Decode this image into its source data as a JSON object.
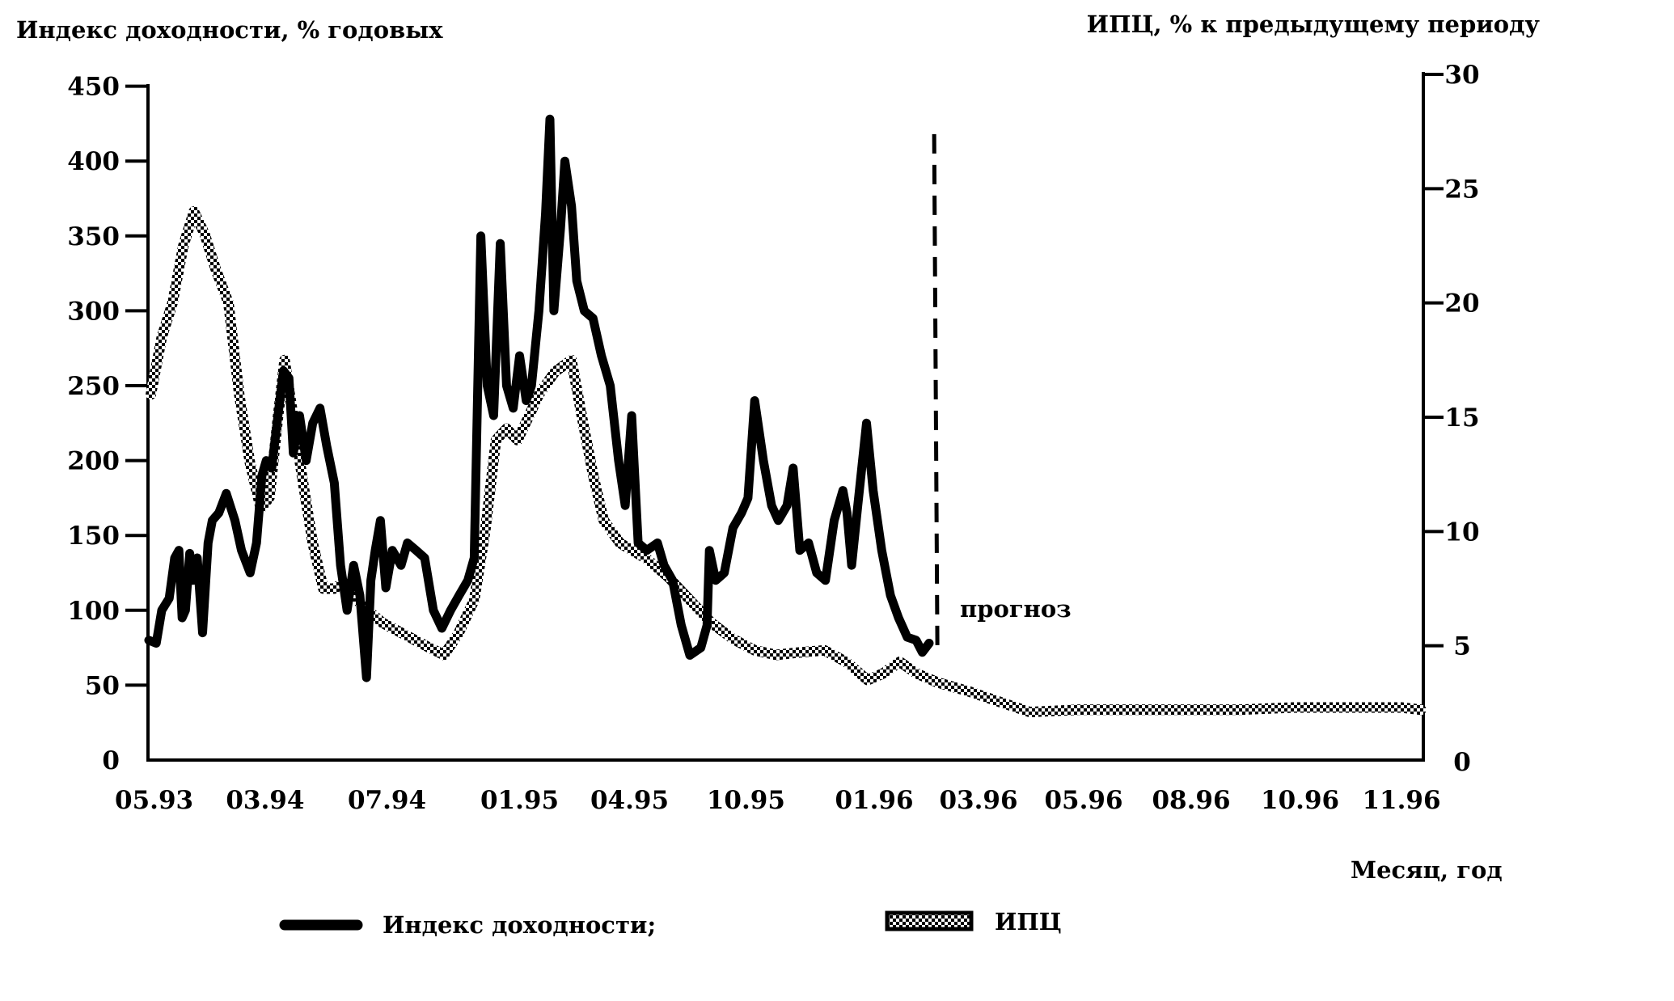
{
  "chart_data": {
    "type": "line",
    "title": "",
    "grid": false,
    "colors": {
      "index_line": "#000000",
      "cpi_pattern_dot": "#000000",
      "cpi_pattern_bg": "#ffffff"
    },
    "y_left": {
      "label": "Индекс доходности, % годовых",
      "range": [
        0,
        450
      ],
      "ticks": [
        0,
        50,
        100,
        150,
        200,
        250,
        300,
        350,
        400,
        450
      ]
    },
    "y_right": {
      "label": "ИПЦ, % к предыдущему периоду",
      "range": [
        0,
        30
      ],
      "ticks": [
        0,
        5,
        10,
        15,
        20,
        25,
        30
      ]
    },
    "x": {
      "label": "Месяц, год",
      "scale": "non-uniform (piecewise between labelled months)",
      "ticks": [
        "05.93",
        "03.94",
        "07.94",
        "01.95",
        "04.95",
        "10.95",
        "01.96",
        "03.96",
        "05.96",
        "08.96",
        "10.96",
        "11.96"
      ],
      "tick_values": [
        1993.333,
        1994.167,
        1994.5,
        1995.0,
        1995.25,
        1995.75,
        1996.0,
        1996.167,
        1996.333,
        1996.583,
        1996.75,
        1996.833
      ]
    },
    "series": [
      {
        "name": "Индекс доходности",
        "axis": "left",
        "style": "solid-thick-black",
        "points": [
          [
            1993.293,
            80
          ],
          [
            1993.349,
            78
          ],
          [
            1993.39,
            100
          ],
          [
            1993.446,
            108
          ],
          [
            1993.487,
            135
          ],
          [
            1993.519,
            140
          ],
          [
            1993.543,
            95
          ],
          [
            1993.568,
            100
          ],
          [
            1993.6,
            138
          ],
          [
            1993.624,
            120
          ],
          [
            1993.657,
            135
          ],
          [
            1993.697,
            85
          ],
          [
            1993.738,
            145
          ],
          [
            1993.77,
            160
          ],
          [
            1993.819,
            165
          ],
          [
            1993.875,
            178
          ],
          [
            1993.94,
            160
          ],
          [
            1993.989,
            140
          ],
          [
            1994.054,
            125
          ],
          [
            1994.102,
            145
          ],
          [
            1994.143,
            190
          ],
          [
            1994.17,
            200
          ],
          [
            1994.185,
            195
          ],
          [
            1994.202,
            230
          ],
          [
            1994.217,
            260
          ],
          [
            1994.232,
            255
          ],
          [
            1994.244,
            205
          ],
          [
            1994.261,
            230
          ],
          [
            1994.279,
            200
          ],
          [
            1994.297,
            225
          ],
          [
            1994.317,
            235
          ],
          [
            1994.335,
            210
          ],
          [
            1994.356,
            185
          ],
          [
            1994.373,
            130
          ],
          [
            1994.391,
            100
          ],
          [
            1994.409,
            130
          ],
          [
            1994.426,
            110
          ],
          [
            1994.444,
            55
          ],
          [
            1994.456,
            120
          ],
          [
            1994.468,
            140
          ],
          [
            1994.482,
            160
          ],
          [
            1994.497,
            115
          ],
          [
            1994.52,
            140
          ],
          [
            1994.553,
            130
          ],
          [
            1994.577,
            145
          ],
          [
            1994.61,
            140
          ],
          [
            1994.642,
            135
          ],
          [
            1994.675,
            100
          ],
          [
            1994.707,
            88
          ],
          [
            1994.74,
            100
          ],
          [
            1994.772,
            110
          ],
          [
            1994.805,
            120
          ],
          [
            1994.829,
            135
          ],
          [
            1994.854,
            350
          ],
          [
            1994.878,
            250
          ],
          [
            1994.902,
            230
          ],
          [
            1994.927,
            345
          ],
          [
            1994.951,
            250
          ],
          [
            1994.976,
            235
          ],
          [
            1995.0,
            270
          ],
          [
            1995.015,
            240
          ],
          [
            1995.027,
            250
          ],
          [
            1995.044,
            300
          ],
          [
            1995.059,
            365
          ],
          [
            1995.069,
            428
          ],
          [
            1995.078,
            300
          ],
          [
            1995.093,
            355
          ],
          [
            1995.103,
            400
          ],
          [
            1995.118,
            370
          ],
          [
            1995.13,
            320
          ],
          [
            1995.147,
            300
          ],
          [
            1995.167,
            295
          ],
          [
            1995.186,
            270
          ],
          [
            1995.206,
            250
          ],
          [
            1995.225,
            200
          ],
          [
            1995.24,
            170
          ],
          [
            1995.259,
            230
          ],
          [
            1995.287,
            145
          ],
          [
            1995.324,
            140
          ],
          [
            1995.37,
            145
          ],
          [
            1995.398,
            130
          ],
          [
            1995.435,
            120
          ],
          [
            1995.472,
            90
          ],
          [
            1995.509,
            70
          ],
          [
            1995.556,
            75
          ],
          [
            1995.583,
            90
          ],
          [
            1995.593,
            140
          ],
          [
            1995.62,
            120
          ],
          [
            1995.657,
            125
          ],
          [
            1995.694,
            155
          ],
          [
            1995.731,
            165
          ],
          [
            1995.754,
            175
          ],
          [
            1995.767,
            240
          ],
          [
            1995.784,
            200
          ],
          [
            1995.8,
            170
          ],
          [
            1995.813,
            160
          ],
          [
            1995.83,
            170
          ],
          [
            1995.842,
            195
          ],
          [
            1995.855,
            140
          ],
          [
            1995.872,
            145
          ],
          [
            1995.888,
            125
          ],
          [
            1995.905,
            120
          ],
          [
            1995.922,
            160
          ],
          [
            1995.939,
            180
          ],
          [
            1995.947,
            165
          ],
          [
            1995.956,
            130
          ],
          [
            1995.968,
            170
          ],
          [
            1995.985,
            225
          ],
          [
            1995.998,
            180
          ],
          [
            1996.012,
            140
          ],
          [
            1996.026,
            110
          ],
          [
            1996.039,
            95
          ],
          [
            1996.053,
            82
          ],
          [
            1996.067,
            80
          ],
          [
            1996.077,
            72
          ],
          [
            1996.088,
            78
          ]
        ]
      },
      {
        "name": "ИПЦ",
        "axis": "right",
        "style": "checkered-band",
        "points": [
          [
            1993.309,
            16
          ],
          [
            1993.39,
            18.5
          ],
          [
            1993.471,
            20
          ],
          [
            1993.552,
            22.5
          ],
          [
            1993.632,
            24
          ],
          [
            1993.713,
            23
          ],
          [
            1993.794,
            21.5
          ],
          [
            1993.891,
            20
          ],
          [
            1993.972,
            16
          ],
          [
            1994.053,
            13
          ],
          [
            1994.134,
            11
          ],
          [
            1994.179,
            11.5
          ],
          [
            1994.202,
            15
          ],
          [
            1994.22,
            17.5
          ],
          [
            1994.244,
            15
          ],
          [
            1994.267,
            12.5
          ],
          [
            1994.297,
            9.5
          ],
          [
            1994.326,
            7.5
          ],
          [
            1994.356,
            7.5
          ],
          [
            1994.385,
            7.8
          ],
          [
            1994.429,
            6.8
          ],
          [
            1994.488,
            6
          ],
          [
            1994.565,
            5.5
          ],
          [
            1994.646,
            5
          ],
          [
            1994.715,
            4.6
          ],
          [
            1994.768,
            5.5
          ],
          [
            1994.829,
            7
          ],
          [
            1994.87,
            10
          ],
          [
            1994.911,
            14
          ],
          [
            1994.951,
            14.5
          ],
          [
            1994.992,
            14
          ],
          [
            1995.02,
            15
          ],
          [
            1995.044,
            16
          ],
          [
            1995.081,
            17
          ],
          [
            1995.118,
            17.5
          ],
          [
            1995.142,
            15
          ],
          [
            1995.167,
            12.5
          ],
          [
            1995.191,
            10.5
          ],
          [
            1995.228,
            9.5
          ],
          [
            1995.324,
            8.8
          ],
          [
            1995.417,
            8
          ],
          [
            1995.509,
            7
          ],
          [
            1995.602,
            6
          ],
          [
            1995.694,
            5.3
          ],
          [
            1995.767,
            4.8
          ],
          [
            1995.809,
            4.6
          ],
          [
            1995.851,
            4.7
          ],
          [
            1995.903,
            4.8
          ],
          [
            1995.945,
            4.3
          ],
          [
            1995.987,
            3.5
          ],
          [
            1996.015,
            3.8
          ],
          [
            1996.041,
            4.3
          ],
          [
            1996.067,
            3.8
          ],
          [
            1996.101,
            3.4
          ],
          [
            1996.152,
            3
          ],
          [
            1996.205,
            2.5
          ],
          [
            1996.248,
            2.1
          ],
          [
            1996.325,
            2.2
          ],
          [
            1996.446,
            2.2
          ],
          [
            1996.571,
            2.2
          ],
          [
            1996.657,
            2.2
          ],
          [
            1996.74,
            2.3
          ],
          [
            1996.789,
            2.3
          ],
          [
            1996.833,
            2.3
          ],
          [
            1996.849,
            2.2
          ]
        ]
      }
    ],
    "annotations": [
      {
        "type": "vertical-dashed-line",
        "x": 1996.096,
        "y_range_left": [
          72,
          418
        ]
      },
      {
        "type": "text",
        "text": "прогноз"
      }
    ],
    "legend": {
      "placement": "bottom",
      "entries": [
        {
          "label": "Индекс доходности;",
          "marker": "thick-black-line"
        },
        {
          "label": "ИПЦ",
          "marker": "checkered-box"
        }
      ]
    }
  }
}
